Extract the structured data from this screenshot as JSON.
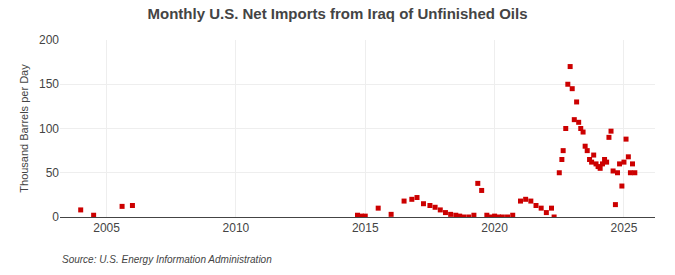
{
  "chart_data": {
    "type": "scatter",
    "title": "Monthly U.S. Net Imports from Iraq of Unfinished Oils",
    "ylabel": "Thousand Barrels per Day",
    "annotations": [
      "Source: U.S. Energy Information Administration"
    ],
    "color": "#cc0000",
    "marker": "square",
    "grid": true,
    "xlim": [
      2003.2,
      2026.2
    ],
    "ylim": [
      0,
      200
    ],
    "xticks": [
      2005,
      2010,
      2015,
      2020,
      2025
    ],
    "yticks": [
      0,
      50,
      100,
      150,
      200
    ],
    "x": [
      2004.0,
      2004.5,
      2005.6,
      2006.0,
      2014.7,
      2014.85,
      2015.0,
      2015.5,
      2016.0,
      2016.5,
      2016.8,
      2017.0,
      2017.25,
      2017.5,
      2017.7,
      2017.9,
      2018.1,
      2018.3,
      2018.5,
      2018.65,
      2018.8,
      2019.0,
      2019.2,
      2019.35,
      2019.5,
      2019.7,
      2019.85,
      2020.0,
      2020.15,
      2020.3,
      2020.5,
      2020.7,
      2021.0,
      2021.2,
      2021.4,
      2021.6,
      2021.8,
      2022.0,
      2022.2,
      2022.3,
      2022.5,
      2022.6,
      2022.65,
      2022.75,
      2022.83,
      2022.92,
      2023.0,
      2023.08,
      2023.17,
      2023.25,
      2023.33,
      2023.42,
      2023.5,
      2023.58,
      2023.67,
      2023.75,
      2023.83,
      2023.92,
      2024.0,
      2024.08,
      2024.17,
      2024.25,
      2024.33,
      2024.42,
      2024.5,
      2024.58,
      2024.67,
      2024.75,
      2024.83,
      2024.92,
      2025.0,
      2025.08,
      2025.17,
      2025.25,
      2025.33,
      2025.42
    ],
    "values": [
      8,
      2,
      12,
      13,
      2,
      1,
      1,
      10,
      3,
      18,
      20,
      22,
      15,
      13,
      11,
      8,
      5,
      3,
      2,
      1,
      0,
      0,
      2,
      38,
      30,
      2,
      0,
      1,
      0,
      0,
      0,
      2,
      18,
      20,
      18,
      13,
      10,
      5,
      10,
      0,
      50,
      65,
      75,
      100,
      150,
      170,
      145,
      110,
      130,
      107,
      100,
      96,
      80,
      75,
      65,
      62,
      70,
      60,
      57,
      55,
      60,
      65,
      62,
      90,
      97,
      52,
      14,
      50,
      60,
      35,
      62,
      88,
      68,
      50,
      60,
      50
    ]
  }
}
